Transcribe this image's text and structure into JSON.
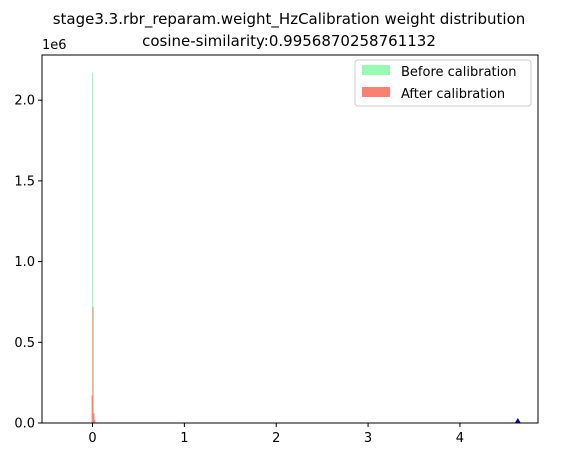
{
  "chart_data": {
    "type": "bar",
    "title": "stage3.3.rbr_reparam.weight_HzCalibration weight distribution",
    "subtitle": "cosine-similarity:0.9956870258761132",
    "xlabel": "",
    "ylabel": "",
    "y_offset_label": "1e6",
    "xlim": [
      -0.55,
      4.85
    ],
    "ylim": [
      0,
      2.28
    ],
    "x_ticks": [
      0,
      1,
      2,
      3,
      4
    ],
    "x_tick_labels": [
      "0",
      "1",
      "2",
      "3",
      "4"
    ],
    "y_ticks": [
      0.0,
      0.5,
      1.0,
      1.5,
      2.0
    ],
    "y_tick_labels": [
      "0.0",
      "0.5",
      "1.0",
      "1.5",
      "2.0"
    ],
    "legend_position": "top-right",
    "series": [
      {
        "name": "Before calibration",
        "color": "#98fbb3",
        "bins": [
          {
            "x0": -0.006,
            "x1": 0.006,
            "value": 2.17
          }
        ]
      },
      {
        "name": "After calibration",
        "color": "#f88171",
        "bins": [
          {
            "x0": -0.01,
            "x1": 0.0,
            "value": 0.17
          },
          {
            "x0": 0.0,
            "x1": 0.01,
            "value": 0.72
          },
          {
            "x0": 0.01,
            "x1": 0.02,
            "value": 0.06
          },
          {
            "x0": 0.02,
            "x1": 0.03,
            "value": 0.02
          }
        ]
      }
    ],
    "outlier_marker": {
      "x": 4.63,
      "y": 0.0,
      "color": "#0000cc"
    }
  }
}
